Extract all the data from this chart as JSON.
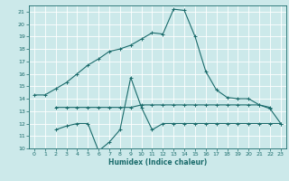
{
  "xlabel": "Humidex (Indice chaleur)",
  "xlim": [
    -0.5,
    23.5
  ],
  "ylim": [
    10,
    21.5
  ],
  "yticks": [
    10,
    11,
    12,
    13,
    14,
    15,
    16,
    17,
    18,
    19,
    20,
    21
  ],
  "xticks": [
    0,
    1,
    2,
    3,
    4,
    5,
    6,
    7,
    8,
    9,
    10,
    11,
    12,
    13,
    14,
    15,
    16,
    17,
    18,
    19,
    20,
    21,
    22,
    23
  ],
  "bg_color": "#cce9ea",
  "grid_color": "#ffffff",
  "line_color": "#1a6b6b",
  "line1_x": [
    0,
    1,
    2,
    3,
    4,
    5,
    6,
    7,
    8,
    9,
    10,
    11,
    12,
    13,
    14,
    15,
    16,
    17,
    18,
    19,
    20,
    21,
    22,
    23
  ],
  "line1_y": [
    14.3,
    14.3,
    14.8,
    15.3,
    16.0,
    16.7,
    17.2,
    17.8,
    18.0,
    18.3,
    18.8,
    19.3,
    19.2,
    21.2,
    21.1,
    19.0,
    16.2,
    14.7,
    14.1,
    14.0,
    14.0,
    13.5,
    13.2,
    12.0
  ],
  "line2_x": [
    2,
    3,
    4,
    5,
    6,
    7,
    8,
    9,
    10,
    11,
    12,
    13,
    14,
    15,
    16,
    17,
    18,
    19,
    20,
    21,
    22
  ],
  "line2_y": [
    13.3,
    13.3,
    13.3,
    13.3,
    13.3,
    13.3,
    13.3,
    13.3,
    13.5,
    13.5,
    13.5,
    13.5,
    13.5,
    13.5,
    13.5,
    13.5,
    13.5,
    13.5,
    13.5,
    13.5,
    13.3
  ],
  "line3_x": [
    2,
    3,
    4,
    5,
    6,
    7,
    8,
    9,
    10,
    11,
    12,
    13,
    14,
    15,
    16,
    17,
    18,
    19,
    20,
    21,
    22,
    23
  ],
  "line3_y": [
    11.5,
    11.8,
    12.0,
    12.0,
    9.8,
    10.5,
    11.5,
    15.7,
    13.3,
    11.5,
    12.0,
    12.0,
    12.0,
    12.0,
    12.0,
    12.0,
    12.0,
    12.0,
    12.0,
    12.0,
    12.0,
    12.0
  ]
}
